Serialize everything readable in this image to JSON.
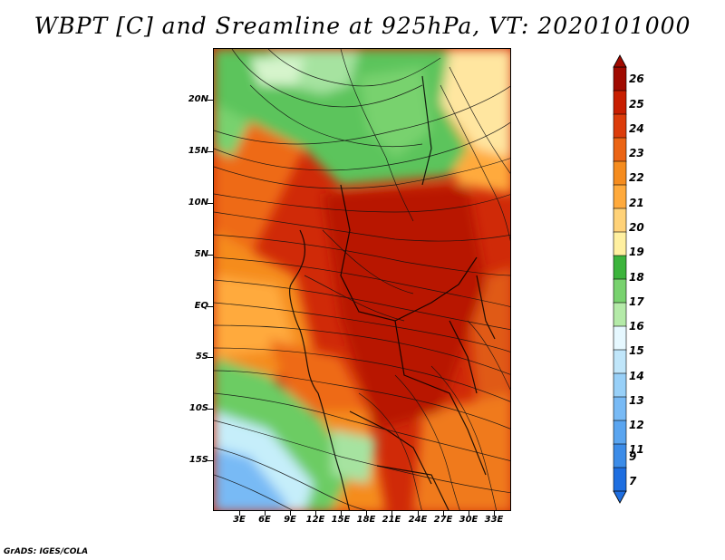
{
  "title": "WBPT [C] and Sreamline at 925hPa, VT: 2020101000",
  "footer": "GrADS: IGES/COLA",
  "map": {
    "lat_labels": [
      "20N",
      "15N",
      "10N",
      "5N",
      "EQ",
      "5S",
      "10S",
      "15S"
    ],
    "lon_labels": [
      "3E",
      "6E",
      "9E",
      "12E",
      "15E",
      "18E",
      "21E",
      "24E",
      "27E",
      "30E",
      "33E"
    ]
  },
  "colorbar": {
    "labels": [
      "7",
      "9",
      "11",
      "12",
      "13",
      "14",
      "15",
      "16",
      "17",
      "18",
      "19",
      "20",
      "21",
      "22",
      "23",
      "24",
      "25",
      "26"
    ],
    "colors": [
      "#1e6ee0",
      "#3c8ce8",
      "#5aa5f0",
      "#78baf5",
      "#98d0f8",
      "#c0e6fa",
      "#e6f8ff",
      "#b4eaa8",
      "#78d26e",
      "#3cb43c",
      "#fff0a0",
      "#ffd278",
      "#ffaa3c",
      "#f58c1e",
      "#eb6414",
      "#dc3c0a",
      "#c81e00",
      "#a00a00"
    ]
  }
}
